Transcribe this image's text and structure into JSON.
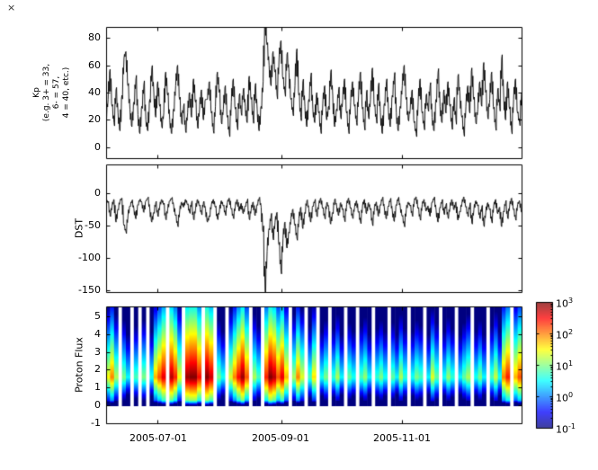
{
  "window": {
    "close_glyph": "×"
  },
  "figure": {
    "background": "#ffffff",
    "axis_color": "#000000",
    "line_color": "#000000",
    "gap_color": "#ffffff"
  },
  "x_axis": {
    "tick_labels": [
      "2005-07-01",
      "2005-09-01",
      "2005-11-01"
    ],
    "tick_days": [
      26,
      88,
      149
    ],
    "range_days": [
      0,
      209
    ]
  },
  "chart_data": [
    {
      "type": "line",
      "name": "kp-index",
      "ylabel_lines": [
        "Kp",
        "(e.g. 3+ = 33,",
        "6- = 57,",
        "4 = 40, etc.)"
      ],
      "ylim": [
        -8,
        88
      ],
      "yticks": [
        0,
        20,
        40,
        60,
        80
      ],
      "values": [
        22,
        35,
        57,
        30,
        18,
        42,
        25,
        12,
        38,
        65,
        70,
        45,
        28,
        15,
        33,
        50,
        24,
        10,
        30,
        46,
        20,
        12,
        35,
        58,
        40,
        22,
        48,
        30,
        15,
        25,
        55,
        38,
        20,
        10,
        28,
        45,
        60,
        35,
        18,
        30,
        12,
        25,
        40,
        22,
        50,
        33,
        15,
        28,
        42,
        20,
        35,
        35,
        48,
        25,
        12,
        30,
        55,
        40,
        18,
        28,
        45,
        22,
        10,
        33,
        50,
        28,
        15,
        38,
        25,
        42,
        30,
        18,
        52,
        35,
        20,
        45,
        28,
        12,
        30,
        48,
        92,
        75,
        60,
        45,
        70,
        55,
        38,
        65,
        78,
        50,
        40,
        68,
        55,
        35,
        25,
        45,
        72,
        38,
        22,
        48,
        30,
        15,
        35,
        52,
        28,
        18,
        40,
        25,
        12,
        32,
        45,
        20,
        30,
        55,
        38,
        15,
        28,
        42,
        22,
        35,
        50,
        25,
        12,
        33,
        48,
        30,
        18,
        38,
        55,
        28,
        15,
        40,
        22,
        35,
        58,
        30,
        20,
        45,
        25,
        10,
        32,
        48,
        28,
        15,
        38,
        52,
        25,
        12,
        30,
        45,
        60,
        35,
        20,
        28,
        42,
        18,
        10,
        33,
        50,
        25,
        15,
        38,
        28,
        45,
        22,
        12,
        35,
        55,
        30,
        18,
        42,
        25,
        48,
        30,
        15,
        35,
        20,
        52,
        38,
        22,
        10,
        30,
        45,
        25,
        58,
        35,
        18,
        28,
        48,
        30,
        62,
        40,
        22,
        35,
        55,
        28,
        15,
        42,
        30,
        65,
        38,
        20,
        48,
        28,
        12,
        35,
        50,
        25,
        18,
        40
      ]
    },
    {
      "type": "line",
      "name": "dst-index",
      "ylabel": "DST",
      "ylim": [
        -153,
        44
      ],
      "yticks": [
        0,
        -50,
        -100,
        -150
      ],
      "values": [
        -10,
        -15,
        -35,
        -20,
        -10,
        -45,
        -25,
        -12,
        -8,
        -50,
        -60,
        -35,
        -20,
        -12,
        -25,
        -40,
        -18,
        -10,
        -15,
        -30,
        -12,
        -8,
        -25,
        -45,
        -30,
        -15,
        -35,
        -20,
        -10,
        -18,
        -40,
        -25,
        -12,
        -8,
        -20,
        -35,
        -50,
        -28,
        -14,
        -22,
        -10,
        -18,
        -30,
        -15,
        -40,
        -25,
        -10,
        -20,
        -32,
        -14,
        -25,
        -45,
        -35,
        -18,
        -10,
        -22,
        -40,
        -28,
        -12,
        -20,
        -33,
        -15,
        -8,
        -25,
        -38,
        -20,
        -10,
        -28,
        -16,
        -32,
        -20,
        -12,
        -40,
        -25,
        -14,
        -35,
        -18,
        -8,
        -22,
        -60,
        -152,
        -90,
        -55,
        -35,
        -70,
        -45,
        -30,
        -80,
        -120,
        -70,
        -45,
        -85,
        -60,
        -40,
        -25,
        -50,
        -70,
        -40,
        -22,
        -55,
        -30,
        -12,
        -25,
        -45,
        -20,
        -12,
        -35,
        -18,
        -8,
        -24,
        -38,
        -15,
        -22,
        -48,
        -30,
        -10,
        -20,
        -35,
        -15,
        -26,
        -42,
        -18,
        -8,
        -24,
        -38,
        -22,
        -12,
        -30,
        -45,
        -20,
        -10,
        -32,
        -15,
        -26,
        -48,
        -22,
        -14,
        -36,
        -18,
        -8,
        -24,
        -40,
        -20,
        -10,
        -28,
        -44,
        -18,
        -8,
        -22,
        -36,
        -50,
        -26,
        -14,
        -20,
        -34,
        -12,
        -6,
        -24,
        -40,
        -18,
        -10,
        -28,
        -20,
        -36,
        -14,
        -8,
        -26,
        -45,
        -22,
        -12,
        -32,
        -18,
        -38,
        -22,
        -10,
        -26,
        -14,
        -42,
        -28,
        -16,
        -6,
        -22,
        -35,
        -18,
        -46,
        -26,
        -12,
        -20,
        -38,
        -22,
        -50,
        -30,
        -15,
        -26,
        -44,
        -20,
        -10,
        -32,
        -22,
        -52,
        -28,
        -14,
        -38,
        -20,
        -8,
        -26,
        -40,
        -18,
        -12,
        -30
      ]
    },
    {
      "type": "heatmap",
      "name": "proton-flux",
      "ylabel": "Proton Flux",
      "ylim": [
        -1,
        5.55
      ],
      "yticks": [
        -1,
        0,
        1,
        2,
        3,
        4,
        5
      ],
      "row_span": [
        0,
        5.5
      ],
      "col_day_step": 2,
      "peak_log_flux": [
        1.5,
        2.0,
        1.2,
        null,
        1.0,
        0.5,
        null,
        0.8,
        null,
        1.0,
        null,
        0.6,
        1.8,
        2.2,
        2.6,
        null,
        2.8,
        2.4,
        1.5,
        null,
        2.9,
        3.0,
        3.0,
        2.5,
        null,
        3.0,
        2.7,
        null,
        1.0,
        0.6,
        null,
        1.4,
        2.0,
        2.5,
        2.9,
        2.2,
        null,
        1.2,
        0.8,
        null,
        2.4,
        3.0,
        2.8,
        2.2,
        2.6,
        1.8,
        null,
        1.2,
        2.0,
        1.4,
        null,
        0.8,
        1.6,
        null,
        0.6,
        1.0,
        null,
        0.7,
        1.2,
        0.5,
        null,
        0.9,
        0.6,
        null,
        0.8,
        1.1,
        0.5,
        null,
        0.7,
        1.0,
        0.6,
        null,
        0.9,
        0.5,
        1.2,
        0.7,
        null,
        0.6,
        1.0,
        0.8,
        null,
        0.5,
        1.4,
        0.9,
        null,
        0.6,
        1.1,
        0.7,
        null,
        0.5,
        0.9,
        1.2,
        null,
        0.6,
        1.0,
        0.5,
        null,
        0.8,
        1.3,
        0.6,
        2.0,
        2.4,
        null,
        1.8,
        2.2
      ],
      "color_scale": {
        "colormap": "jet",
        "type": "log",
        "range_log10": [
          -1,
          3
        ],
        "tick_exponents": [
          3,
          2,
          1,
          0,
          -1
        ]
      }
    }
  ]
}
